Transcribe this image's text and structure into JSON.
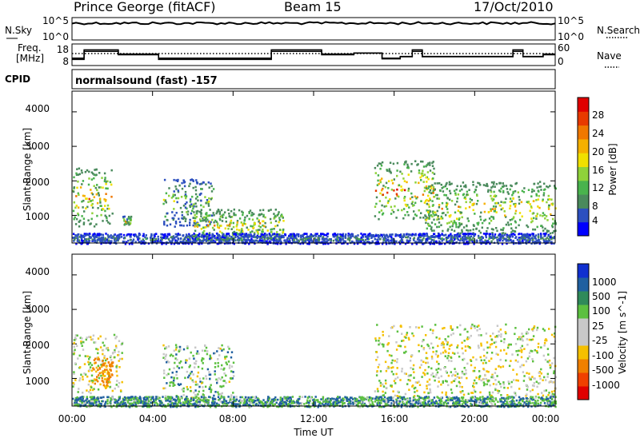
{
  "header": {
    "station": "Prince George (fitACF)",
    "beam": "Beam 15",
    "date": "17/Oct/2010"
  },
  "sky_panel": {
    "left_label": "N.Sky",
    "left_ticks": [
      "10^5",
      "10^0"
    ],
    "right_ticks": [
      "10^5",
      "10^0"
    ],
    "right_label": "N.Search"
  },
  "freq_panel": {
    "left_label_line1": "Freq.",
    "left_label_line2": "[MHz]",
    "left_ticks": [
      "18",
      "8"
    ],
    "right_ticks": [
      "60",
      "0"
    ],
    "right_label": "Nave"
  },
  "cpid_panel": {
    "label": "CPID",
    "value": "normalsound (fast) -157"
  },
  "xaxis": {
    "ticks": [
      "00:00",
      "04:00",
      "08:00",
      "12:00",
      "16:00",
      "20:00",
      "00:00"
    ],
    "label": "Time UT"
  },
  "power_panel": {
    "ylabel": "Slant Range [km]",
    "yticks": [
      "4000",
      "3000",
      "2000",
      "1000"
    ],
    "colorbar_label": "Power [dB]",
    "colorbar_ticks": [
      "28",
      "24",
      "20",
      "16",
      "12",
      "8",
      "4"
    ],
    "colors": [
      "#0000ff",
      "#2c4fbf",
      "#4a8a5c",
      "#49b34d",
      "#8fd23a",
      "#f0e000",
      "#f5b000",
      "#f07800",
      "#e83a00",
      "#e00000"
    ]
  },
  "velocity_panel": {
    "ylabel": "Slant Range [km]",
    "yticks": [
      "4000",
      "3000",
      "2000",
      "1000"
    ],
    "colorbar_label": "Velocity [m s^-1]",
    "colorbar_ticks": [
      "1000",
      "500",
      "100",
      "25",
      "-25",
      "-100",
      "-500",
      "-1000"
    ],
    "colors": [
      "#1030d0",
      "#2060a0",
      "#2f8a5a",
      "#5cc040",
      "#c8c8c8",
      "#c8c8c8",
      "#f5c000",
      "#f08000",
      "#f04000",
      "#e00000"
    ]
  },
  "chart_data": {
    "type": "heatmap",
    "x_unit": "hours UT",
    "xlim": [
      0,
      24
    ],
    "ylim_km": [
      200,
      4600
    ],
    "frequency_MHz": {
      "x": [
        0,
        0.6,
        2.3,
        4.3,
        9.9,
        12.4,
        13.6,
        14.0,
        15.4,
        16.3,
        16.9,
        17.4,
        21.0,
        21.9,
        22.4,
        23.4,
        24
      ],
      "values": [
        11,
        15,
        13,
        11,
        15,
        13,
        13,
        14,
        11,
        12,
        15,
        12,
        12,
        15,
        12,
        13,
        13
      ]
    },
    "nave": {
      "x": [
        0,
        0.6,
        2.3,
        4.3,
        9.9,
        12.4,
        13.6,
        14.0,
        15.4,
        16.3,
        16.9,
        17.4,
        21.0,
        21.9,
        22.4,
        23.4,
        24
      ],
      "values": [
        20,
        56,
        40,
        20,
        56,
        40,
        40,
        44,
        22,
        30,
        56,
        30,
        30,
        56,
        30,
        40,
        40
      ]
    },
    "nave_reference": 42,
    "n_sky_level": "~10^4 (approx. flat)",
    "echo_regions_power": [
      {
        "t": [
          0.0,
          2.0
        ],
        "range_km": [
          700,
          2400
        ],
        "peak_dB": 26
      },
      {
        "t": [
          2.5,
          2.9
        ],
        "range_km": [
          700,
          1000
        ],
        "peak_dB": 22
      },
      {
        "t": [
          4.5,
          7.0
        ],
        "range_km": [
          700,
          2100
        ],
        "peak_dB": 18
      },
      {
        "t": [
          6.0,
          10.5
        ],
        "range_km": [
          300,
          1200
        ],
        "peak_dB": 24
      },
      {
        "t": [
          15.0,
          18.0
        ],
        "range_km": [
          900,
          2600
        ],
        "peak_dB": 28
      },
      {
        "t": [
          17.5,
          24.0
        ],
        "range_km": [
          500,
          2000
        ],
        "peak_dB": 24
      },
      {
        "t": [
          0.0,
          24.0
        ],
        "range_km": [
          200,
          500
        ],
        "peak_dB": 10
      }
    ],
    "echo_regions_velocity": [
      {
        "t": [
          0.0,
          2.5
        ],
        "range_km": [
          600,
          2300
        ],
        "mean_m_s": 0
      },
      {
        "t": [
          1.0,
          2.0
        ],
        "range_km": [
          800,
          1600
        ],
        "mean_m_s": -150
      },
      {
        "t": [
          4.5,
          8.0
        ],
        "range_km": [
          400,
          2000
        ],
        "mean_m_s": 50
      },
      {
        "t": [
          15.0,
          24.0
        ],
        "range_km": [
          500,
          2600
        ],
        "mean_m_s": 0
      },
      {
        "t": [
          0.0,
          24.0
        ],
        "range_km": [
          200,
          500
        ],
        "mean_m_s": 100
      }
    ]
  }
}
